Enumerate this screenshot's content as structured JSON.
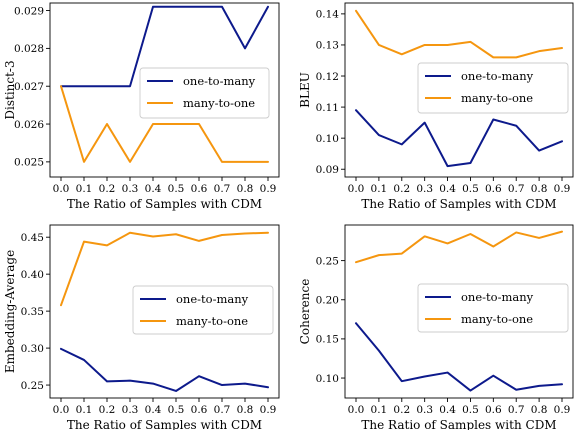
{
  "chart_data": [
    {
      "type": "line",
      "xlabel": "The Ratio of Samples with CDM",
      "ylabel": "Distinct-3",
      "x": [
        "0.0",
        "0.1",
        "0.2",
        "0.3",
        "0.4",
        "0.5",
        "0.6",
        "0.7",
        "0.8",
        "0.9"
      ],
      "ylim": [
        0.0246,
        0.0292
      ],
      "yticks": [
        "0.025",
        "0.026",
        "0.027",
        "0.028",
        "0.029"
      ],
      "legend_position": "center-right",
      "series": [
        {
          "name": "one-to-many",
          "color": "#0d1a8c",
          "values": [
            0.027,
            0.027,
            0.027,
            0.027,
            0.0291,
            0.0291,
            0.0291,
            0.0291,
            0.028,
            0.0291
          ]
        },
        {
          "name": "many-to-one",
          "color": "#f5960f",
          "values": [
            0.027,
            0.025,
            0.026,
            0.025,
            0.026,
            0.026,
            0.026,
            0.025,
            0.025,
            0.025
          ]
        }
      ]
    },
    {
      "type": "line",
      "xlabel": "The Ratio of Samples with CDM",
      "ylabel": "BLEU",
      "x": [
        "0.0",
        "0.1",
        "0.2",
        "0.3",
        "0.4",
        "0.5",
        "0.6",
        "0.7",
        "0.8",
        "0.9"
      ],
      "ylim": [
        0.0875,
        0.1435
      ],
      "yticks": [
        "0.09",
        "0.10",
        "0.11",
        "0.12",
        "0.13",
        "0.14"
      ],
      "legend_position": "center-right",
      "series": [
        {
          "name": "one-to-many",
          "color": "#0d1a8c",
          "values": [
            0.109,
            0.101,
            0.098,
            0.105,
            0.091,
            0.092,
            0.106,
            0.104,
            0.096,
            0.099
          ]
        },
        {
          "name": "many-to-one",
          "color": "#f5960f",
          "values": [
            0.141,
            0.13,
            0.127,
            0.13,
            0.13,
            0.131,
            0.126,
            0.126,
            0.128,
            0.129
          ]
        }
      ]
    },
    {
      "type": "line",
      "xlabel": "The Ratio of Samples with CDM",
      "ylabel": "Embedding-Average",
      "x": [
        "0.0",
        "0.1",
        "0.2",
        "0.3",
        "0.4",
        "0.5",
        "0.6",
        "0.7",
        "0.8",
        "0.9"
      ],
      "ylim": [
        0.2325,
        0.4665
      ],
      "yticks": [
        "0.25",
        "0.30",
        "0.35",
        "0.40",
        "0.45"
      ],
      "legend_position": "center-right",
      "series": [
        {
          "name": "one-to-many",
          "color": "#0d1a8c",
          "values": [
            0.299,
            0.284,
            0.255,
            0.256,
            0.252,
            0.242,
            0.262,
            0.25,
            0.252,
            0.247
          ]
        },
        {
          "name": "many-to-one",
          "color": "#f5960f",
          "values": [
            0.358,
            0.444,
            0.439,
            0.456,
            0.451,
            0.454,
            0.445,
            0.453,
            0.455,
            0.456
          ]
        }
      ]
    },
    {
      "type": "line",
      "xlabel": "The Ratio of Samples with CDM",
      "ylabel": "Coherence",
      "x": [
        "0.0",
        "0.1",
        "0.2",
        "0.3",
        "0.4",
        "0.5",
        "0.6",
        "0.7",
        "0.8",
        "0.9"
      ],
      "ylim": [
        0.0745,
        0.2955
      ],
      "yticks": [
        "0.10",
        "0.15",
        "0.20",
        "0.25"
      ],
      "legend_position": "center-right",
      "series": [
        {
          "name": "one-to-many",
          "color": "#0d1a8c",
          "values": [
            0.17,
            0.135,
            0.096,
            0.102,
            0.107,
            0.084,
            0.103,
            0.085,
            0.09,
            0.092
          ]
        },
        {
          "name": "many-to-one",
          "color": "#f5960f",
          "values": [
            0.248,
            0.257,
            0.259,
            0.281,
            0.272,
            0.284,
            0.268,
            0.286,
            0.279,
            0.287
          ]
        }
      ]
    }
  ]
}
